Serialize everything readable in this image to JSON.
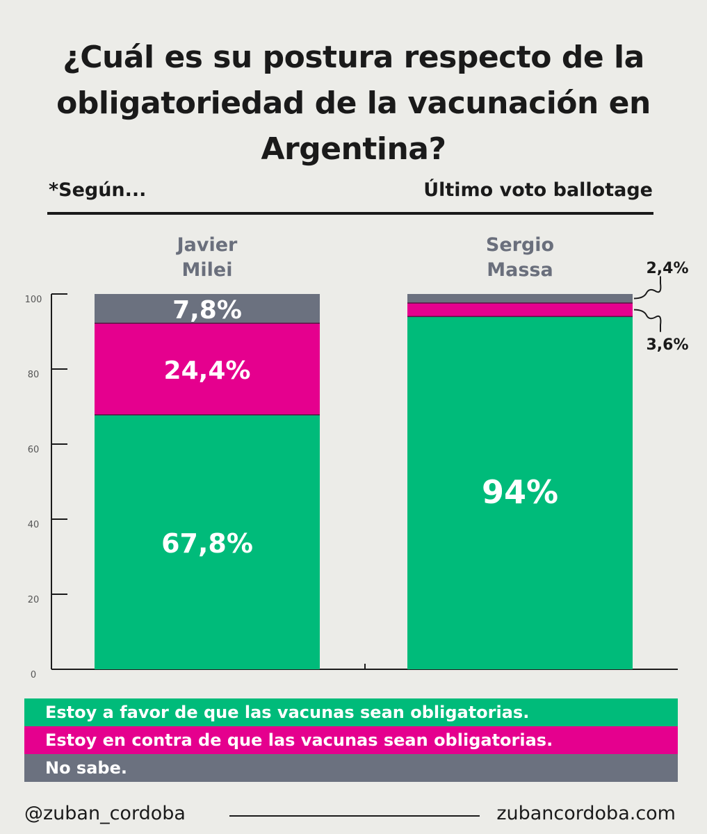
{
  "title": "¿Cuál es su postura respecto de la obligatoriedad de la vacunación en Argentina?",
  "subtitle_left": "*Según...",
  "subtitle_right": "Último voto ballotage",
  "colors": {
    "favor": "#00bb7a",
    "contra": "#e5008e",
    "no_sabe": "#6b717f"
  },
  "chart_data": {
    "type": "stacked-bar",
    "categories": [
      "Javier Milei",
      "Sergio Massa"
    ],
    "category_lines": [
      [
        "Javier",
        "Milei"
      ],
      [
        "Sergio",
        "Massa"
      ]
    ],
    "series": [
      {
        "name": "Estoy a favor de que las vacunas sean obligatorias.",
        "values": [
          67.8,
          94
        ],
        "labels": [
          "67,8%",
          "94%"
        ]
      },
      {
        "name": "Estoy en contra de que las vacunas sean obligatorias.",
        "values": [
          24.4,
          3.6
        ],
        "labels": [
          "24,4%",
          "3,6%"
        ]
      },
      {
        "name": "No sabe.",
        "values": [
          7.8,
          2.4
        ],
        "labels": [
          "7,8%",
          "2,4%"
        ]
      }
    ],
    "ylim": [
      0,
      100
    ],
    "yticks": [
      "0",
      "20",
      "40",
      "60",
      "80",
      "100"
    ],
    "grid": false,
    "legend_placement": "bottom"
  },
  "footer": {
    "handle": "@zuban_cordoba",
    "site": "zubancordoba.com"
  }
}
